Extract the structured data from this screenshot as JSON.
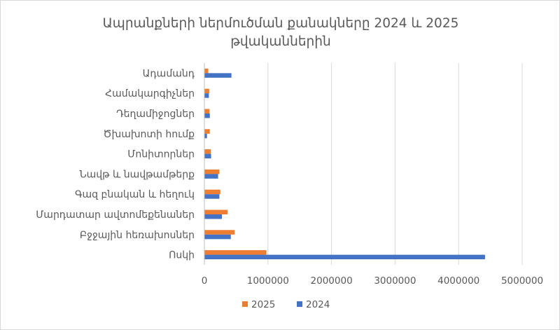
{
  "chart_data": {
    "type": "bar",
    "orientation": "horizontal",
    "title_line1": "Ապրանքների ներմուծման քանակները 2024 և 2025",
    "title_line2": "թվականներին",
    "categories": [
      "Ադամանդ",
      "Համակարգիչներ",
      "Դեղամիջոցներ",
      "Ծխախոտի հումք",
      "Մոնիտորներ",
      "Նավթ և նավթամթերք",
      "Գազ բնական և հեղուկ",
      "Մարդատար  ավտոմեքենաներ",
      "Բջջային հեռախոսներ",
      "Ոսկի"
    ],
    "series": [
      {
        "name": "2025",
        "color": "#ed7d31",
        "values": [
          55000,
          70000,
          75000,
          80000,
          95000,
          230000,
          245000,
          360000,
          470000,
          970000
        ]
      },
      {
        "name": "2024",
        "color": "#4472c4",
        "values": [
          420000,
          65000,
          80000,
          35000,
          100000,
          210000,
          230000,
          270000,
          410000,
          4410000
        ]
      }
    ],
    "xlim": [
      0,
      5000000
    ],
    "xticks": [
      "0",
      "1000000",
      "2000000",
      "3000000",
      "4000000",
      "5000000"
    ],
    "grid": true,
    "legend_position": "bottom",
    "legend": [
      "2025",
      "2024"
    ]
  }
}
